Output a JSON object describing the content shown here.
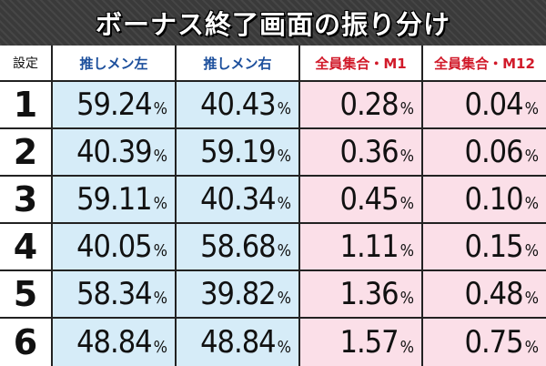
{
  "title": "ボーナス終了画面の振り分け",
  "table": {
    "headers": [
      "設定",
      "推しメン左",
      "推しメン右",
      "全員集合・M1",
      "全員集合・M12"
    ],
    "rows": [
      {
        "setting": "1",
        "values": [
          "59.24",
          "40.43",
          "0.28",
          "0.04"
        ]
      },
      {
        "setting": "2",
        "values": [
          "40.39",
          "59.19",
          "0.36",
          "0.06"
        ]
      },
      {
        "setting": "3",
        "values": [
          "59.11",
          "40.34",
          "0.45",
          "0.10"
        ]
      },
      {
        "setting": "4",
        "values": [
          "40.05",
          "58.68",
          "1.11",
          "0.15"
        ]
      },
      {
        "setting": "5",
        "values": [
          "58.34",
          "39.82",
          "1.36",
          "0.48"
        ]
      },
      {
        "setting": "6",
        "values": [
          "48.84",
          "48.84",
          "1.57",
          "0.75"
        ]
      }
    ],
    "unit": "%"
  },
  "colors": {
    "header_blue": "#1c4f9c",
    "header_red": "#d11a2a",
    "cell_blue": "#d6ecf8",
    "cell_pink": "#fbdfe8"
  }
}
